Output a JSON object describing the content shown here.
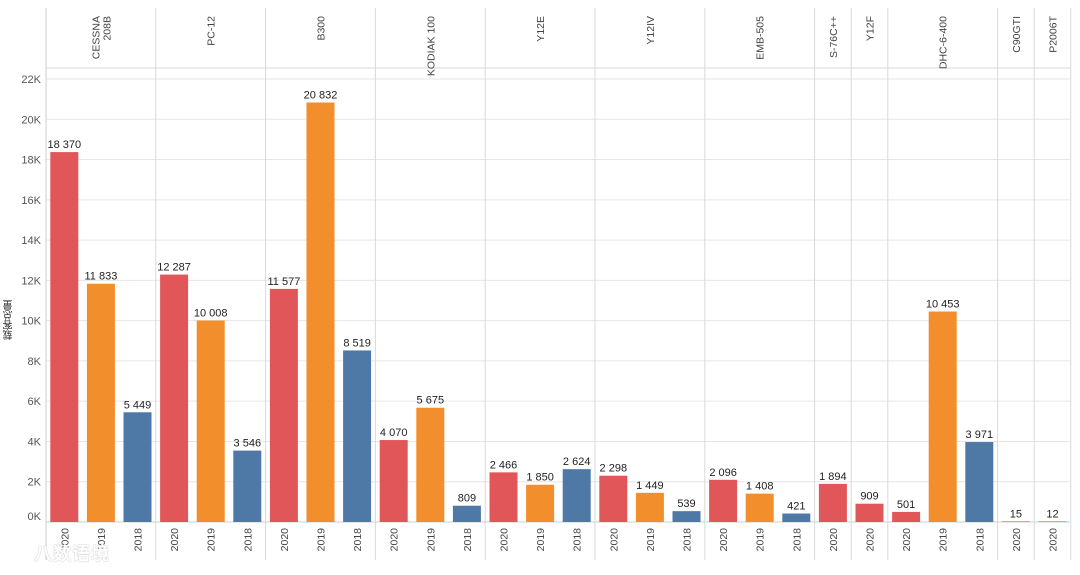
{
  "chart_data": {
    "type": "bar",
    "ylabel": "载客总量",
    "ylim": [
      0,
      22000
    ],
    "yticks": [
      {
        "value": 0,
        "label": "0K"
      },
      {
        "value": 2000,
        "label": "2K"
      },
      {
        "value": 4000,
        "label": "4K"
      },
      {
        "value": 6000,
        "label": "6K"
      },
      {
        "value": 8000,
        "label": "8K"
      },
      {
        "value": 10000,
        "label": "10K"
      },
      {
        "value": 12000,
        "label": "12K"
      },
      {
        "value": 14000,
        "label": "14K"
      },
      {
        "value": 16000,
        "label": "16K"
      },
      {
        "value": 18000,
        "label": "18K"
      },
      {
        "value": 20000,
        "label": "20K"
      },
      {
        "value": 22000,
        "label": "22K"
      }
    ],
    "grid": true,
    "year_colors": {
      "2020": "#e15759",
      "2019": "#f28e2b",
      "2018": "#4e79a7"
    },
    "groups": [
      {
        "name": "CESSNA 208B",
        "label_lines": [
          "CESSNA",
          "208B"
        ],
        "bars": [
          {
            "year": "2020",
            "value": 18370,
            "label": "18 370"
          },
          {
            "year": "2019",
            "value": 11833,
            "label": "11 833"
          },
          {
            "year": "2018",
            "value": 5449,
            "label": "5 449"
          }
        ]
      },
      {
        "name": "PC-12",
        "label_lines": [
          "PC-12"
        ],
        "bars": [
          {
            "year": "2020",
            "value": 12287,
            "label": "12 287"
          },
          {
            "year": "2019",
            "value": 10008,
            "label": "10 008"
          },
          {
            "year": "2018",
            "value": 3546,
            "label": "3 546"
          }
        ]
      },
      {
        "name": "B300",
        "label_lines": [
          "B300"
        ],
        "bars": [
          {
            "year": "2020",
            "value": 11577,
            "label": "11 577"
          },
          {
            "year": "2019",
            "value": 20832,
            "label": "20 832"
          },
          {
            "year": "2018",
            "value": 8519,
            "label": "8 519"
          }
        ]
      },
      {
        "name": "KODIAK 100",
        "label_lines": [
          "KODIAK 100"
        ],
        "bars": [
          {
            "year": "2020",
            "value": 4070,
            "label": "4 070"
          },
          {
            "year": "2019",
            "value": 5675,
            "label": "5 675"
          },
          {
            "year": "2018",
            "value": 809,
            "label": "809"
          }
        ]
      },
      {
        "name": "Y12E",
        "label_lines": [
          "Y12E"
        ],
        "bars": [
          {
            "year": "2020",
            "value": 2466,
            "label": "2 466"
          },
          {
            "year": "2019",
            "value": 1850,
            "label": "1 850"
          },
          {
            "year": "2018",
            "value": 2624,
            "label": "2 624"
          }
        ]
      },
      {
        "name": "Y12IV",
        "label_lines": [
          "Y12IV"
        ],
        "bars": [
          {
            "year": "2020",
            "value": 2298,
            "label": "2 298"
          },
          {
            "year": "2019",
            "value": 1449,
            "label": "1 449"
          },
          {
            "year": "2018",
            "value": 539,
            "label": "539"
          }
        ]
      },
      {
        "name": "EMB-505",
        "label_lines": [
          "EMB-505"
        ],
        "bars": [
          {
            "year": "2020",
            "value": 2096,
            "label": "2 096"
          },
          {
            "year": "2019",
            "value": 1408,
            "label": "1 408"
          },
          {
            "year": "2018",
            "value": 421,
            "label": "421"
          }
        ]
      },
      {
        "name": "S-76C++",
        "label_lines": [
          "S-76C++"
        ],
        "bars": [
          {
            "year": "2020",
            "value": 1894,
            "label": "1 894"
          }
        ]
      },
      {
        "name": "Y12F",
        "label_lines": [
          "Y12F"
        ],
        "bars": [
          {
            "year": "2020",
            "value": 909,
            "label": "909"
          }
        ]
      },
      {
        "name": "DHC-6-400",
        "label_lines": [
          "DHC-6-400"
        ],
        "bars": [
          {
            "year": "2020",
            "value": 501,
            "label": "501"
          },
          {
            "year": "2019",
            "value": 10453,
            "label": "10 453"
          },
          {
            "year": "2018",
            "value": 3971,
            "label": "3 971"
          }
        ]
      },
      {
        "name": "C90GTI",
        "label_lines": [
          "C90GTI"
        ],
        "bars": [
          {
            "year": "2020",
            "value": 15,
            "label": "15"
          }
        ]
      },
      {
        "name": "P2006T",
        "label_lines": [
          "P2006T"
        ],
        "bars": [
          {
            "year": "2020",
            "value": 12,
            "label": "12"
          }
        ]
      }
    ]
  },
  "watermark": "八数语境"
}
